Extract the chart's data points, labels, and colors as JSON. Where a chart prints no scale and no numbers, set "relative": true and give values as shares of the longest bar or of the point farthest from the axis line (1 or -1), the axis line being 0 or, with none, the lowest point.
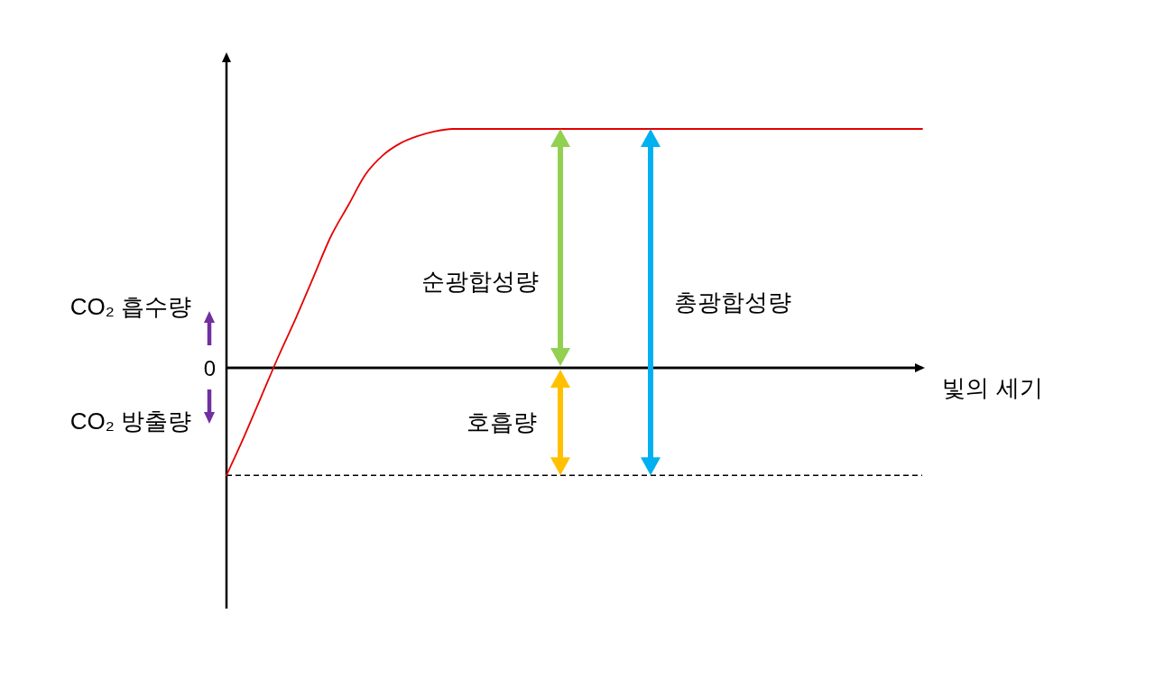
{
  "chart_data": {
    "type": "line",
    "relative": true,
    "xlabel": "빛의 세기",
    "categories": [
      null,
      null,
      null,
      null,
      null,
      null,
      null,
      null,
      null,
      null,
      null,
      null,
      null,
      null,
      null,
      null,
      null,
      null,
      null,
      null,
      null,
      null,
      null,
      null,
      null,
      null,
      null,
      null,
      null,
      null,
      null,
      null,
      null,
      null,
      null,
      null,
      null,
      null,
      null,
      null,
      null
    ],
    "series": [
      {
        "color": "#e60000",
        "values": [
          -0.45,
          -0.29,
          -0.12,
          0.05,
          0.21,
          0.38,
          0.55,
          0.68,
          0.81,
          0.89,
          0.94,
          0.97,
          0.99,
          1,
          1,
          1,
          1,
          1,
          1,
          1,
          1,
          1,
          1,
          1,
          1,
          1,
          1,
          1,
          1,
          1,
          1,
          1,
          1,
          1,
          1,
          1,
          1,
          1,
          1,
          1,
          1
        ]
      }
    ],
    "ref_lines": [
      {
        "axis": "y",
        "value": 0,
        "label": "0",
        "color": "#000000"
      },
      {
        "axis": "y",
        "value": -0.45,
        "color": "#000000",
        "line_style": "dashed"
      }
    ],
    "annotations": [
      "CO₂ 흡수량",
      "CO₂ 방출량",
      "순광합성량",
      "호흡량",
      "총광합성량"
    ]
  }
}
